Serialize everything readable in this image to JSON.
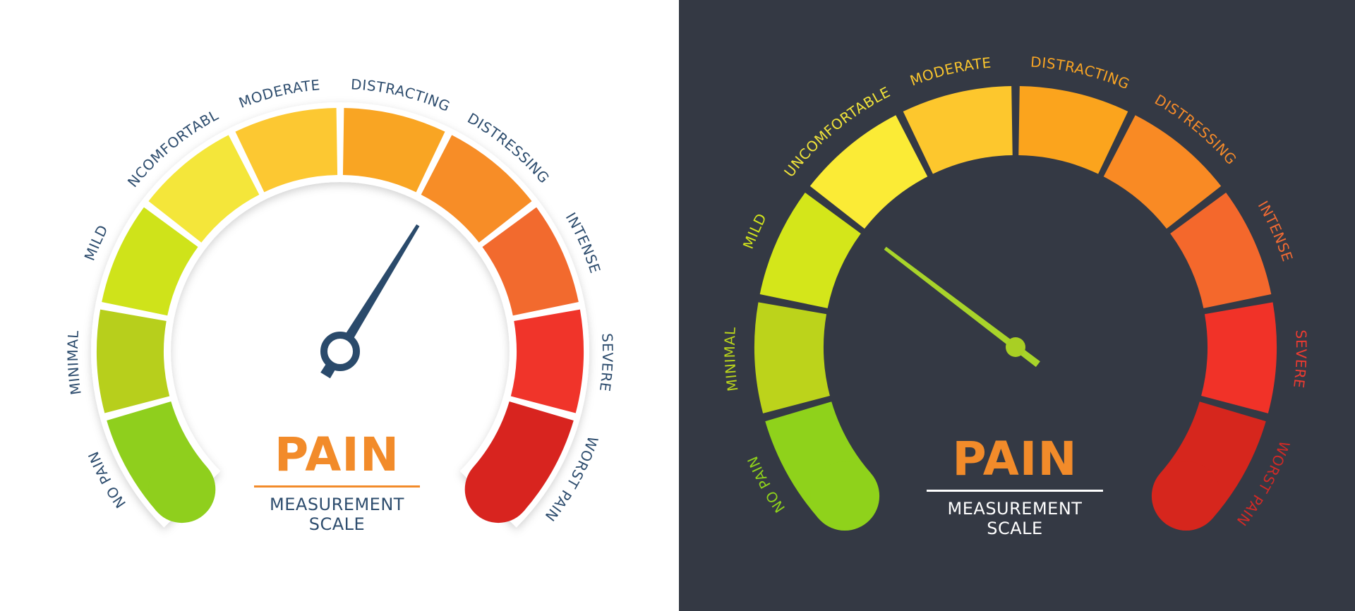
{
  "title": "PAIN",
  "subtitle_line1": "MEASUREMENT",
  "subtitle_line2": "SCALE",
  "levels": [
    {
      "label": "NO PAIN",
      "color_light": "#8fcf1d",
      "color_dark": "#8fd21b",
      "text_dark": "#8fd21b"
    },
    {
      "label": "MINIMAL",
      "color_light": "#b7cf1c",
      "color_dark": "#bcd31b",
      "text_dark": "#b9d41c"
    },
    {
      "label": "MILD",
      "color_light": "#cfe31a",
      "color_dark": "#d4e61a",
      "text_dark": "#d2e41c"
    },
    {
      "label": "UNCOMFORTABLE",
      "color_light": "#f4e63a",
      "color_dark": "#fbeb36",
      "text_dark": "#efe23a"
    },
    {
      "label": "MODERATE",
      "color_light": "#fcc832",
      "color_dark": "#fdc72d",
      "text_dark": "#f9c52e"
    },
    {
      "label": "DISTRACTING",
      "color_light": "#f9a523",
      "color_dark": "#fba41d",
      "text_dark": "#f8a424"
    },
    {
      "label": "DISTRESSING",
      "color_light": "#f78d27",
      "color_dark": "#f98a24",
      "text_dark": "#f48a2a"
    },
    {
      "label": "INTENSE",
      "color_light": "#f26a2e",
      "color_dark": "#f4682c",
      "text_dark": "#f06a33"
    },
    {
      "label": "SEVERE",
      "color_light": "#f0342a",
      "color_dark": "#f13228",
      "text_dark": "#ea3b31"
    },
    {
      "label": "WORST PAIN",
      "color_light": "#d8241f",
      "color_dark": "#d6261d",
      "text_dark": "#d12a26"
    }
  ],
  "gauges": [
    {
      "theme": "light",
      "needle_value": 6.2,
      "background": "#ffffff",
      "needle_color": "#2a4a6b",
      "label_color": "#2e4d6e",
      "title_color": "#f28b2a",
      "subtitle_color": "#2e4d6e",
      "rule_color": "#f28b2a"
    },
    {
      "theme": "dark",
      "needle_value": 3.0,
      "background": "#343944",
      "needle_color": "#a8d42a",
      "label_color": null,
      "title_color": "#f28b2a",
      "subtitle_color": "#ffffff",
      "rule_color": "#ffffff"
    }
  ]
}
